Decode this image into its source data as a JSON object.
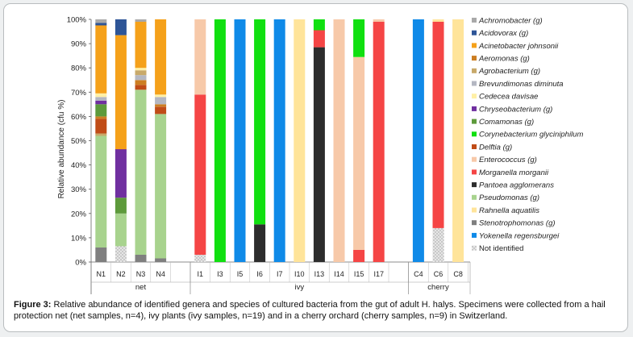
{
  "caption": {
    "label": "Figure 3:",
    "text": "Relative abundance of identified genera and species of cultured bacteria from the gut of adult H. halys. Specimens were collected from a hail protection net (net samples, n=4), ivy plants (ivy samples, n=19) and in a cherry orchard (cherry samples, n=9) in Switzerland."
  },
  "chart_data": {
    "type": "bar",
    "stacked": true,
    "ylabel": "Relative abundance (cfu %)",
    "ylim": [
      0,
      100
    ],
    "yticks": [
      "0%",
      "10%",
      "20%",
      "30%",
      "40%",
      "50%",
      "60%",
      "70%",
      "80%",
      "90%",
      "100%"
    ],
    "legend_position": "right",
    "series": [
      {
        "name": "Achromobacter (g)",
        "color": "#a9a9a9"
      },
      {
        "name": "Acidovorax (g)",
        "color": "#2e5597"
      },
      {
        "name": "Acinetobacter johnsonii",
        "color": "#f5a11a"
      },
      {
        "name": "Aeromonas (g)",
        "color": "#cc7e22"
      },
      {
        "name": "Agrobacterium (g)",
        "color": "#c8a96a"
      },
      {
        "name": "Brevundimonas diminuta",
        "color": "#b4b7c2"
      },
      {
        "name": "Cedecea davisae",
        "color": "#fff0a6"
      },
      {
        "name": "Chryseobacterium (g)",
        "color": "#7030a0"
      },
      {
        "name": "Comamonas (g)",
        "color": "#5d9a3b"
      },
      {
        "name": "Corynebacterium glyciniphilum",
        "color": "#10e010"
      },
      {
        "name": "Delftia (g)",
        "color": "#c04c17"
      },
      {
        "name": "Enterococcus (g)",
        "color": "#f7c9a9"
      },
      {
        "name": "Morganella morganii",
        "color": "#f54545"
      },
      {
        "name": "Pantoea agglomerans",
        "color": "#2d2d2d"
      },
      {
        "name": "Pseudomonas (g)",
        "color": "#a8d38e"
      },
      {
        "name": "Rahnella aquatilis",
        "color": "#ffe49a"
      },
      {
        "name": "Stenotrophomonas (g)",
        "color": "#7f7f7f"
      },
      {
        "name": "Yokenella regensburgei",
        "color": "#0f8ae8"
      },
      {
        "name": "Not identified",
        "color": "#dadada",
        "pattern": "dotted"
      }
    ],
    "groups": [
      {
        "name": "net",
        "samples": [
          {
            "label": "N1",
            "stack": [
              [
                "Stenotrophomonas (g)",
                6
              ],
              [
                "Pseudomonas (g)",
                46
              ],
              [
                "Agrobacterium (g)",
                1
              ],
              [
                "Delftia (g)",
                6
              ],
              [
                "Aeromonas (g)",
                1
              ],
              [
                "Comamonas (g)",
                5
              ],
              [
                "Chryseobacterium (g)",
                1.5
              ],
              [
                "Brevundimonas diminuta",
                1.5
              ],
              [
                "Cedecea davisae",
                1.5
              ],
              [
                "Acinetobacter johnsonii",
                28
              ],
              [
                "Acidovorax (g)",
                1
              ],
              [
                "Achromobacter (g)",
                1.5
              ]
            ]
          },
          {
            "label": "N2",
            "stack": [
              [
                "Not identified",
                6.5
              ],
              [
                "Pseudomonas (g)",
                13.5
              ],
              [
                "Comamonas (g)",
                6.5
              ],
              [
                "Chryseobacterium (g)",
                20
              ],
              [
                "Acinetobacter johnsonii",
                47
              ],
              [
                "Acidovorax (g)",
                6.5
              ]
            ]
          },
          {
            "label": "N3",
            "stack": [
              [
                "Stenotrophomonas (g)",
                3
              ],
              [
                "Pseudomonas (g)",
                68
              ],
              [
                "Delftia (g)",
                2
              ],
              [
                "Aeromonas (g)",
                2
              ],
              [
                "Brevundimonas diminuta",
                2
              ],
              [
                "Agrobacterium (g)",
                2
              ],
              [
                "Cedecea davisae",
                1
              ],
              [
                "Acinetobacter johnsonii",
                19
              ],
              [
                "Achromobacter (g)",
                1
              ]
            ]
          },
          {
            "label": "N4",
            "stack": [
              [
                "Stenotrophomonas (g)",
                1.5
              ],
              [
                "Pseudomonas (g)",
                59.5
              ],
              [
                "Delftia (g)",
                3
              ],
              [
                "Aeromonas (g)",
                1
              ],
              [
                "Brevundimonas diminuta",
                3
              ],
              [
                "Cedecea davisae",
                1
              ],
              [
                "Acinetobacter johnsonii",
                31
              ]
            ]
          },
          {
            "label": "",
            "stack": []
          }
        ]
      },
      {
        "name": "ivy",
        "samples": [
          {
            "label": "I1",
            "stack": [
              [
                "Not identified",
                3
              ],
              [
                "Morganella morganii",
                66
              ],
              [
                "Enterococcus (g)",
                31
              ]
            ]
          },
          {
            "label": "I3",
            "stack": [
              [
                "Corynebacterium glyciniphilum",
                100
              ]
            ]
          },
          {
            "label": "I5",
            "stack": [
              [
                "Yokenella regensburgei",
                100
              ]
            ]
          },
          {
            "label": "I6",
            "stack": [
              [
                "Pantoea agglomerans",
                15.5
              ],
              [
                "Corynebacterium glyciniphilum",
                84.5
              ]
            ]
          },
          {
            "label": "I7",
            "stack": [
              [
                "Yokenella regensburgei",
                100
              ]
            ]
          },
          {
            "label": "I10",
            "stack": [
              [
                "Rahnella aquatilis",
                100
              ]
            ]
          },
          {
            "label": "I13",
            "stack": [
              [
                "Pantoea agglomerans",
                88.5
              ],
              [
                "Morganella morganii",
                7
              ],
              [
                "Corynebacterium glyciniphilum",
                4.5
              ]
            ]
          },
          {
            "label": "I14",
            "stack": [
              [
                "Enterococcus (g)",
                100
              ]
            ]
          },
          {
            "label": "I15",
            "stack": [
              [
                "Morganella morganii",
                5
              ],
              [
                "Enterococcus (g)",
                79.5
              ],
              [
                "Corynebacterium glyciniphilum",
                15.5
              ]
            ]
          },
          {
            "label": "I17",
            "stack": [
              [
                "Morganella morganii",
                99
              ],
              [
                "Enterococcus (g)",
                1
              ]
            ]
          },
          {
            "label": "",
            "stack": []
          }
        ]
      },
      {
        "name": "cherry",
        "samples": [
          {
            "label": "C4",
            "stack": [
              [
                "Yokenella regensburgei",
                100
              ]
            ]
          },
          {
            "label": "C6",
            "stack": [
              [
                "Not identified",
                14
              ],
              [
                "Morganella morganii",
                85
              ],
              [
                "Rahnella aquatilis",
                1
              ]
            ]
          },
          {
            "label": "C8",
            "stack": [
              [
                "Rahnella aquatilis",
                100
              ]
            ]
          }
        ]
      }
    ]
  }
}
